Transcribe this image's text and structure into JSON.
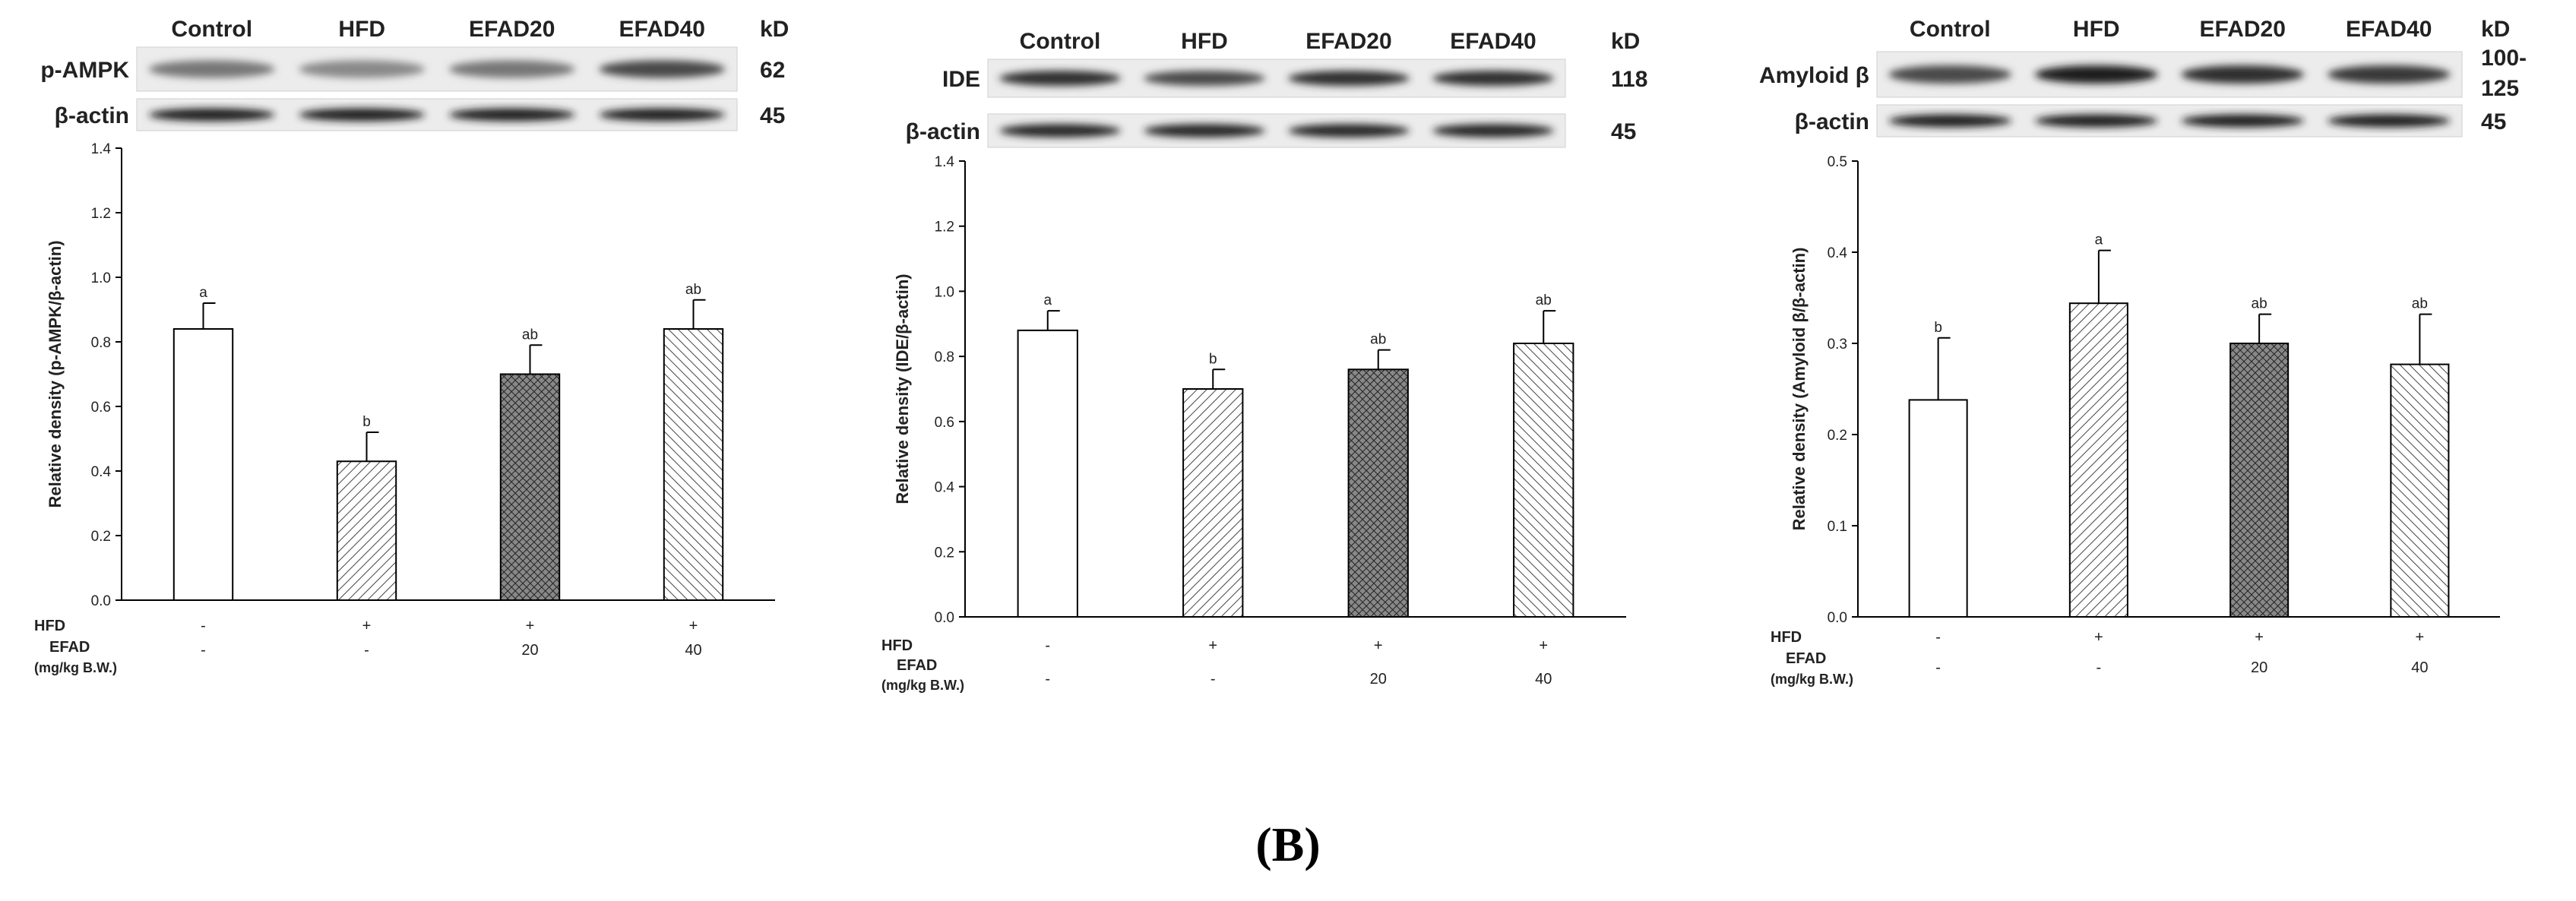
{
  "figure_label": "(B)",
  "chart_data": [
    {
      "type": "bar",
      "blot": {
        "lanes": [
          "Control",
          "HFD",
          "EFAD20",
          "EFAD40"
        ],
        "unit": "kD",
        "rows": [
          {
            "label": "p-AMPK",
            "kd": "62",
            "intensity": [
              0.45,
              0.35,
              0.45,
              0.7
            ]
          },
          {
            "label": "β-actin",
            "kd": "45",
            "intensity": [
              0.95,
              0.95,
              0.95,
              0.95
            ]
          }
        ]
      },
      "categories": [
        "Control",
        "HFD",
        "EFAD20",
        "EFAD40"
      ],
      "values": [
        0.84,
        0.43,
        0.7,
        0.84
      ],
      "errors": [
        0.08,
        0.09,
        0.09,
        0.09
      ],
      "significance": [
        "a",
        "b",
        "ab",
        "ab"
      ],
      "patterns": [
        "none",
        "diag",
        "cross",
        "diag-rev"
      ],
      "ylabel": "Relative density (p-AMPK/β-actin)",
      "ylim": [
        0,
        1.4
      ],
      "yticks": [
        "0.0",
        "0.2",
        "0.4",
        "0.6",
        "0.8",
        "1.0",
        "1.2",
        "1.4"
      ],
      "treatment": {
        "hfd_label": "HFD",
        "hfd": [
          "-",
          "+",
          "+",
          "+"
        ],
        "efad_label": [
          "EFAD",
          "(mg/kg B.W.)"
        ],
        "efad": [
          "-",
          "-",
          "20",
          "40"
        ]
      }
    },
    {
      "type": "bar",
      "blot": {
        "lanes": [
          "Control",
          "HFD",
          "EFAD20",
          "EFAD40"
        ],
        "unit": "kD",
        "rows": [
          {
            "label": "IDE",
            "kd": "118",
            "intensity": [
              0.85,
              0.7,
              0.85,
              0.85
            ]
          },
          {
            "label": "β-actin",
            "kd": "45",
            "intensity": [
              0.9,
              0.9,
              0.9,
              0.9
            ]
          }
        ]
      },
      "categories": [
        "Control",
        "HFD",
        "EFAD20",
        "EFAD40"
      ],
      "values": [
        0.88,
        0.7,
        0.76,
        0.84
      ],
      "errors": [
        0.06,
        0.06,
        0.06,
        0.1
      ],
      "significance": [
        "a",
        "b",
        "ab",
        "ab"
      ],
      "patterns": [
        "none",
        "diag",
        "cross",
        "diag-rev"
      ],
      "ylabel": "Relative density (IDE/β-actin)",
      "ylim": [
        0,
        1.4
      ],
      "yticks": [
        "0.0",
        "0.2",
        "0.4",
        "0.6",
        "0.8",
        "1.0",
        "1.2",
        "1.4"
      ],
      "treatment": {
        "hfd_label": "HFD",
        "hfd": [
          "-",
          "+",
          "+",
          "+"
        ],
        "efad_label": [
          "EFAD",
          "(mg/kg B.W.)"
        ],
        "efad": [
          "-",
          "-",
          "20",
          "40"
        ]
      }
    },
    {
      "type": "bar",
      "blot": {
        "lanes": [
          "Control",
          "HFD",
          "EFAD20",
          "EFAD40"
        ],
        "unit": "kD",
        "rows": [
          {
            "label": "Amyloid β",
            "kd_lines": [
              "100-",
              "125"
            ],
            "intensity": [
              0.7,
              0.95,
              0.85,
              0.8
            ]
          },
          {
            "label": "β-actin",
            "kd": "45",
            "intensity": [
              0.95,
              0.95,
              0.95,
              0.95
            ]
          }
        ]
      },
      "categories": [
        "Control",
        "HFD",
        "EFAD20",
        "EFAD40"
      ],
      "values": [
        0.238,
        0.344,
        0.3,
        0.277
      ],
      "errors": [
        0.068,
        0.058,
        0.032,
        0.055
      ],
      "significance": [
        "b",
        "a",
        "ab",
        "ab"
      ],
      "patterns": [
        "none",
        "diag",
        "cross",
        "diag-rev"
      ],
      "ylabel": "Relative density (Amyloid β/β-actin)",
      "ylim": [
        0,
        0.5
      ],
      "yticks": [
        "0.0",
        "0.1",
        "0.2",
        "0.3",
        "0.4",
        "0.5"
      ],
      "treatment": {
        "hfd_label": "HFD",
        "hfd": [
          "-",
          "+",
          "+",
          "+"
        ],
        "efad_label": [
          "EFAD",
          "(mg/kg B.W.)"
        ],
        "efad": [
          "-",
          "-",
          "20",
          "40"
        ]
      }
    }
  ]
}
